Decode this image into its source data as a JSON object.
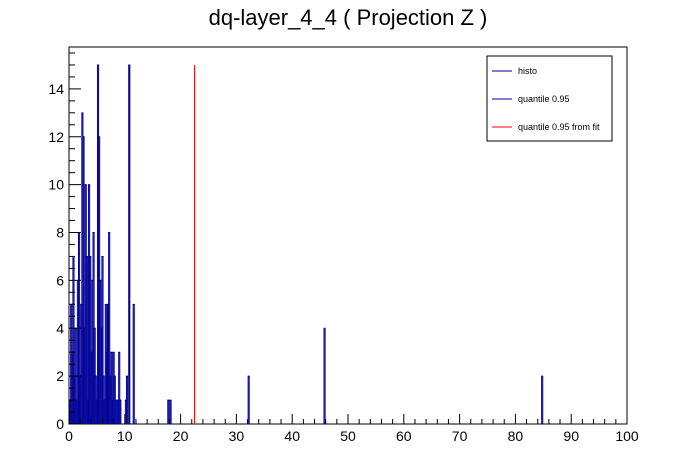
{
  "chart_data": {
    "type": "bar",
    "title": "dq-layer_4_4 ( Projection Z )",
    "xlabel": "",
    "ylabel": "",
    "xlim": [
      0,
      100
    ],
    "ylim": [
      0,
      15.75
    ],
    "x_ticks": [
      0,
      10,
      20,
      30,
      40,
      50,
      60,
      70,
      80,
      90,
      100
    ],
    "y_ticks": [
      0,
      2,
      4,
      6,
      8,
      10,
      12,
      14
    ],
    "grid": false,
    "legend_position": "top-right",
    "series": [
      {
        "name": "histo",
        "color": "#000099",
        "bins": [
          {
            "x": 0.2,
            "y": 1
          },
          {
            "x": 0.4,
            "y": 5
          },
          {
            "x": 0.6,
            "y": 3
          },
          {
            "x": 0.8,
            "y": 7
          },
          {
            "x": 1.0,
            "y": 2
          },
          {
            "x": 1.2,
            "y": 4
          },
          {
            "x": 1.4,
            "y": 1
          },
          {
            "x": 1.6,
            "y": 6
          },
          {
            "x": 1.8,
            "y": 8
          },
          {
            "x": 2.0,
            "y": 2
          },
          {
            "x": 2.2,
            "y": 5
          },
          {
            "x": 2.4,
            "y": 13
          },
          {
            "x": 2.6,
            "y": 12
          },
          {
            "x": 2.8,
            "y": 4
          },
          {
            "x": 3.0,
            "y": 10
          },
          {
            "x": 3.2,
            "y": 7
          },
          {
            "x": 3.4,
            "y": 1
          },
          {
            "x": 3.6,
            "y": 10
          },
          {
            "x": 3.8,
            "y": 7
          },
          {
            "x": 4.0,
            "y": 3
          },
          {
            "x": 4.2,
            "y": 6
          },
          {
            "x": 4.4,
            "y": 8
          },
          {
            "x": 4.6,
            "y": 4
          },
          {
            "x": 4.8,
            "y": 2
          },
          {
            "x": 5.0,
            "y": 1
          },
          {
            "x": 5.2,
            "y": 15
          },
          {
            "x": 5.4,
            "y": 12
          },
          {
            "x": 5.6,
            "y": 6
          },
          {
            "x": 5.8,
            "y": 4
          },
          {
            "x": 6.0,
            "y": 7
          },
          {
            "x": 6.2,
            "y": 2
          },
          {
            "x": 6.4,
            "y": 1
          },
          {
            "x": 6.6,
            "y": 5
          },
          {
            "x": 6.8,
            "y": 3
          },
          {
            "x": 7.0,
            "y": 5
          },
          {
            "x": 7.2,
            "y": 8
          },
          {
            "x": 7.4,
            "y": 2
          },
          {
            "x": 7.6,
            "y": 3
          },
          {
            "x": 7.8,
            "y": 1
          },
          {
            "x": 8.0,
            "y": 3
          },
          {
            "x": 8.2,
            "y": 2
          },
          {
            "x": 8.4,
            "y": 1
          },
          {
            "x": 8.8,
            "y": 1
          },
          {
            "x": 9.0,
            "y": 3
          },
          {
            "x": 9.2,
            "y": 1
          },
          {
            "x": 10.2,
            "y": 1
          },
          {
            "x": 10.4,
            "y": 2
          },
          {
            "x": 10.8,
            "y": 15
          },
          {
            "x": 11.6,
            "y": 5
          },
          {
            "x": 17.8,
            "y": 1
          },
          {
            "x": 18.2,
            "y": 1
          },
          {
            "x": 32.2,
            "y": 2
          },
          {
            "x": 45.8,
            "y": 4
          },
          {
            "x": 84.8,
            "y": 2
          }
        ]
      },
      {
        "name": "quantile 0.95",
        "color": "#000099",
        "x": 10.8,
        "y": 15
      },
      {
        "name": "quantile 0.95 from fit",
        "color": "#ff0000",
        "x": 22.5,
        "y": 15
      }
    ]
  }
}
